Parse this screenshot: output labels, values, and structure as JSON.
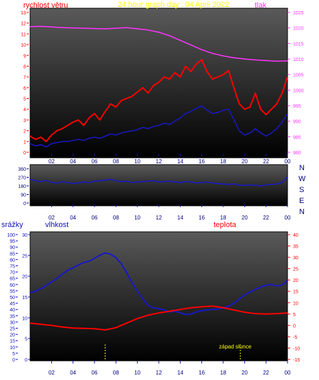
{
  "page": {
    "title": "24 hour graph day : 04 April 2022",
    "compass": [
      "N",
      "W",
      "S",
      "E",
      "N"
    ],
    "sunset": "západ slunce"
  },
  "colors": {
    "background": "#ffffff",
    "plot_top": "#5a5a5a",
    "plot_bottom": "#000000",
    "wind": "#ff0000",
    "gust_avg": "#1818c8",
    "pressure": "#ff33ff",
    "title": "#ffff00",
    "axis_black": "#000080",
    "axis_red": "#ff0000",
    "axis_blue": "#1010c0",
    "marker": "#ffff00"
  },
  "chart_data": [
    {
      "type": "line",
      "title": "24 hour graph day : 04 April 2022",
      "left_label": "rychlost větru",
      "right_label": "tlak",
      "x_ticks": [
        "02",
        "04",
        "06",
        "08",
        "10",
        "12",
        "14",
        "16",
        "18",
        "20",
        "22",
        "00"
      ],
      "x_range": [
        0,
        24
      ],
      "left_ticks": [
        0,
        1,
        2,
        3,
        4,
        5,
        6,
        7,
        8,
        9,
        10,
        11,
        12,
        13
      ],
      "left_range": [
        0,
        13
      ],
      "right_ticks": [
        980,
        985,
        990,
        995,
        1000,
        1005,
        1010,
        1015,
        1020,
        1025
      ],
      "right_range": [
        980,
        1025
      ],
      "series": [
        {
          "color": "red",
          "axis": "left",
          "x": [
            0,
            0.5,
            1,
            1.5,
            2,
            2.5,
            3,
            3.5,
            4,
            4.5,
            5,
            5.5,
            6,
            6.5,
            7,
            7.5,
            8,
            8.5,
            9,
            9.5,
            10,
            10.5,
            11,
            11.5,
            12,
            12.5,
            13,
            13.5,
            14,
            14.5,
            15,
            15.5,
            16,
            16.5,
            17,
            17.5,
            18,
            18.5,
            19,
            19.5,
            20,
            20.5,
            21,
            21.5,
            22,
            22.5,
            23,
            23.5,
            24
          ],
          "values": [
            1.5,
            1.2,
            1.4,
            1.0,
            1.6,
            2.0,
            2.2,
            2.5,
            2.8,
            3.0,
            2.5,
            3.2,
            3.6,
            3.0,
            3.8,
            4.5,
            4.2,
            4.8,
            5.0,
            5.2,
            5.6,
            6.0,
            5.5,
            6.2,
            6.5,
            7.0,
            6.8,
            7.4,
            7.0,
            8.0,
            7.5,
            8.2,
            8.6,
            7.5,
            6.8,
            7.0,
            7.2,
            7.6,
            6.0,
            4.5,
            4.0,
            4.2,
            5.5,
            4.0,
            3.5,
            4.0,
            4.5,
            5.5,
            7.0
          ]
        },
        {
          "color": "blue",
          "axis": "left",
          "x": [
            0,
            0.5,
            1,
            1.5,
            2,
            2.5,
            3,
            3.5,
            4,
            4.5,
            5,
            5.5,
            6,
            6.5,
            7,
            7.5,
            8,
            8.5,
            9,
            9.5,
            10,
            10.5,
            11,
            11.5,
            12,
            12.5,
            13,
            13.5,
            14,
            14.5,
            15,
            15.5,
            16,
            16.5,
            17,
            17.5,
            18,
            18.5,
            19,
            19.5,
            20,
            20.5,
            21,
            21.5,
            22,
            22.5,
            23,
            23.5,
            24
          ],
          "values": [
            0.8,
            0.6,
            0.7,
            0.5,
            0.8,
            0.9,
            1.0,
            1.0,
            1.1,
            1.2,
            1.1,
            1.3,
            1.4,
            1.3,
            1.5,
            1.7,
            1.6,
            1.8,
            1.9,
            2.0,
            2.1,
            2.3,
            2.2,
            2.4,
            2.5,
            2.7,
            2.6,
            2.9,
            3.2,
            3.6,
            3.8,
            4.1,
            4.3,
            3.9,
            3.6,
            3.7,
            3.9,
            4.0,
            3.0,
            2.0,
            1.6,
            1.8,
            2.2,
            1.8,
            1.5,
            1.8,
            2.2,
            2.8,
            3.6
          ]
        },
        {
          "color": "magenta",
          "axis": "right",
          "x": [
            0,
            1,
            2,
            3,
            4,
            5,
            6,
            7,
            8,
            9,
            10,
            11,
            12,
            13,
            14,
            15,
            16,
            17,
            18,
            19,
            20,
            21,
            22,
            23,
            24
          ],
          "values": [
            1020.4,
            1020.5,
            1020.3,
            1020.1,
            1020.0,
            1019.9,
            1019.8,
            1019.7,
            1019.9,
            1020.1,
            1019.7,
            1019.3,
            1018.6,
            1017.5,
            1016.0,
            1014.5,
            1013.0,
            1011.8,
            1011.0,
            1010.4,
            1010.0,
            1009.7,
            1009.5,
            1009.3,
            1009.4
          ]
        }
      ]
    },
    {
      "type": "line",
      "x_ticks": [
        "02",
        "04",
        "06",
        "08",
        "10",
        "12",
        "14",
        "16",
        "18",
        "20",
        "22",
        "00"
      ],
      "x_range": [
        0,
        24
      ],
      "y_ticks": [
        0,
        90,
        180,
        270,
        360
      ],
      "y_range": [
        0,
        360
      ],
      "series": [
        {
          "color": "blue",
          "x": [
            0,
            0.5,
            1,
            1.5,
            2,
            2.5,
            3,
            3.5,
            4,
            4.5,
            5,
            5.5,
            6,
            6.5,
            7,
            7.5,
            8,
            8.5,
            9,
            9.5,
            10,
            10.5,
            11,
            11.5,
            12,
            12.5,
            13,
            13.5,
            14,
            14.5,
            15,
            15.5,
            16,
            16.5,
            17,
            17.5,
            18,
            18.5,
            19,
            19.5,
            20,
            20.5,
            21,
            21.5,
            22,
            22.5,
            23,
            23.5,
            24
          ],
          "values": [
            250,
            235,
            225,
            240,
            215,
            210,
            225,
            215,
            205,
            210,
            220,
            215,
            230,
            235,
            240,
            250,
            235,
            225,
            230,
            215,
            220,
            225,
            230,
            235,
            220,
            225,
            230,
            220,
            215,
            225,
            220,
            210,
            215,
            220,
            210,
            205,
            200,
            195,
            200,
            190,
            185,
            190,
            185,
            180,
            190,
            195,
            200,
            215,
            275
          ]
        }
      ]
    },
    {
      "type": "line",
      "left_label": "srážky",
      "left_label2": "vlhkost",
      "right_label": "teplota",
      "x_ticks": [
        "02",
        "04",
        "06",
        "08",
        "10",
        "12",
        "14",
        "16",
        "18",
        "20",
        "22",
        "00"
      ],
      "x_range": [
        0,
        24
      ],
      "rain_ticks": [
        0,
        5,
        10,
        15,
        20,
        25,
        30,
        35,
        40,
        45,
        50,
        55,
        60,
        65,
        70,
        75,
        80,
        85,
        90,
        95,
        100
      ],
      "rain_range": [
        0,
        100
      ],
      "humidity_ticks": [
        0,
        5,
        10,
        15,
        20,
        25,
        30
      ],
      "humidity_range": [
        0,
        30
      ],
      "temperature_ticks": [
        40,
        35,
        30,
        25,
        20,
        15,
        10,
        5,
        0,
        -5,
        -10,
        -15
      ],
      "temperature_range": [
        -15,
        40
      ],
      "series": [
        {
          "color": "blue",
          "axis": "humidity",
          "x": [
            0,
            0.5,
            1,
            1.5,
            2,
            2.5,
            3,
            3.5,
            4,
            4.5,
            5,
            5.5,
            6,
            6.5,
            7,
            7.5,
            8,
            8.5,
            9,
            9.5,
            10,
            10.5,
            11,
            11.5,
            12,
            12.5,
            13,
            13.5,
            14,
            14.5,
            15,
            15.5,
            16,
            16.5,
            17,
            17.5,
            18,
            18.5,
            19,
            19.5,
            20,
            20.5,
            21,
            21.5,
            22,
            22.5,
            23,
            23.5,
            24
          ],
          "values": [
            16,
            16.4,
            17,
            17.8,
            18.6,
            19.5,
            20.5,
            21.4,
            22,
            22.7,
            23.3,
            23.6,
            24.3,
            25,
            25.6,
            25.3,
            24.5,
            23,
            20.8,
            18.5,
            16.4,
            14.5,
            13,
            12.4,
            12.2,
            11.9,
            11.4,
            11.6,
            11.2,
            10.8,
            10.9,
            11.4,
            11.7,
            11.9,
            12.0,
            12.1,
            12.4,
            12.8,
            13.5,
            14.5,
            15.5,
            16.2,
            16.8,
            17.4,
            17.8,
            18,
            17.6,
            17.9,
            19.0
          ]
        },
        {
          "color": "red",
          "axis": "temperature",
          "x": [
            0,
            1,
            2,
            3,
            4,
            5,
            6,
            7,
            8,
            9,
            10,
            11,
            12,
            13,
            14,
            15,
            16,
            17,
            18,
            19,
            20,
            21,
            22,
            23,
            24
          ],
          "values": [
            1.0,
            0.5,
            0,
            -0.7,
            -1.2,
            -1.3,
            -1.5,
            -2.0,
            -1.0,
            1.0,
            3.0,
            4.5,
            5.5,
            6.2,
            7.0,
            7.8,
            8.2,
            8.5,
            7.8,
            6.8,
            5.8,
            5.2,
            5.0,
            5.2,
            5.5
          ]
        },
        {
          "color": "yellow",
          "axis": "rain",
          "x": [
            7.0,
            19.6
          ],
          "values": [
            12,
            12
          ]
        }
      ]
    }
  ]
}
